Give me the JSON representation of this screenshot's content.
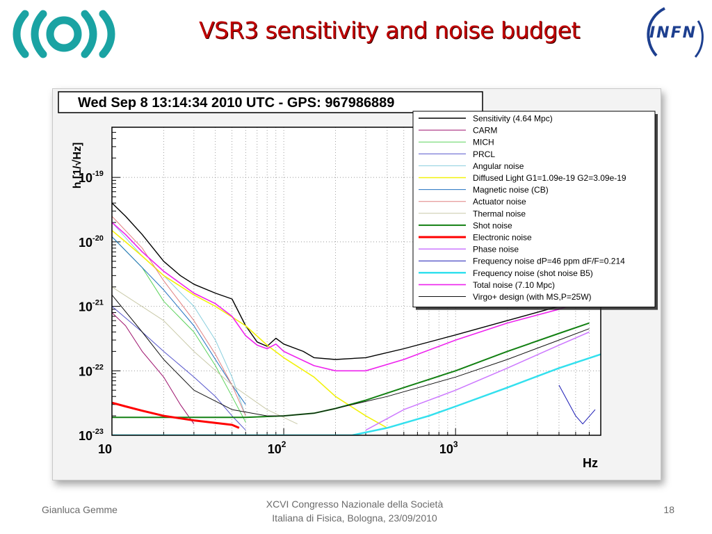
{
  "slide": {
    "title": "VSR3 sensitivity  and noise budget",
    "logo_left_icon": "virgo-wave-logo-icon",
    "logo_right_icon": "infn-logo-icon",
    "logo_right_text": "INFN"
  },
  "footer": {
    "author": "Gianluca Gemme",
    "event_line1": "XCVI Congresso Nazionale della Società",
    "event_line2": "Italiana di Fisica, Bologna, 23/09/2010",
    "page_number": "18"
  },
  "chart_data": {
    "type": "line",
    "title": "Wed Sep  8 13:14:34 2010 UTC - GPS: 967986889",
    "xlabel": "Hz",
    "ylabel": "h [1/√Hz]",
    "x_scale": "log",
    "y_scale": "log",
    "xlim": [
      10,
      7000
    ],
    "ylim": [
      1e-23,
      6e-19
    ],
    "x_ticks": [
      {
        "value": 10,
        "base": "10",
        "exp": ""
      },
      {
        "value": 100,
        "base": "10",
        "exp": "2"
      },
      {
        "value": 1000,
        "base": "10",
        "exp": "3"
      }
    ],
    "y_ticks": [
      {
        "value": 1e-19,
        "base": "10",
        "exp": "-19"
      },
      {
        "value": 1e-20,
        "base": "10",
        "exp": "-20"
      },
      {
        "value": 1e-21,
        "base": "10",
        "exp": "-21"
      },
      {
        "value": 1e-22,
        "base": "10",
        "exp": "-22"
      },
      {
        "value": 1e-23,
        "base": "10",
        "exp": "-23"
      }
    ],
    "grid": true,
    "legend_position": "top-right",
    "series": [
      {
        "name": "Sensitivity (4.64 Mpc)",
        "color": "#000000",
        "width": 1.4,
        "points": [
          [
            10,
            4e-20
          ],
          [
            12,
            2.5e-20
          ],
          [
            15,
            1.3e-20
          ],
          [
            20,
            5e-21
          ],
          [
            25,
            3e-21
          ],
          [
            30,
            2.2e-21
          ],
          [
            40,
            1.6e-21
          ],
          [
            50,
            1.3e-21
          ],
          [
            60,
            5e-22
          ],
          [
            70,
            2.8e-22
          ],
          [
            80,
            2.4e-22
          ],
          [
            90,
            3.2e-22
          ],
          [
            100,
            2.6e-22
          ],
          [
            130,
            2e-22
          ],
          [
            150,
            1.6e-22
          ],
          [
            200,
            1.5e-22
          ],
          [
            300,
            1.6e-22
          ],
          [
            500,
            2.2e-22
          ],
          [
            1000,
            3.6e-22
          ],
          [
            2000,
            6e-22
          ],
          [
            4000,
            1e-21
          ],
          [
            6000,
            1.3e-21
          ]
        ]
      },
      {
        "name": "CARM",
        "color": "#9c0f6b",
        "width": 1,
        "points": [
          [
            10,
            8e-22
          ],
          [
            12,
            5e-22
          ],
          [
            15,
            2e-22
          ],
          [
            20,
            8e-23
          ],
          [
            25,
            3e-23
          ],
          [
            30,
            1.5e-23
          ]
        ]
      },
      {
        "name": "MICH",
        "color": "#5bd35b",
        "width": 1,
        "points": [
          [
            10,
            1.2e-20
          ],
          [
            15,
            4e-21
          ],
          [
            20,
            1.2e-21
          ],
          [
            30,
            4e-22
          ],
          [
            40,
            1.2e-22
          ],
          [
            50,
            4e-23
          ],
          [
            60,
            1.6e-23
          ]
        ]
      },
      {
        "name": "PRCL",
        "color": "#5555cc",
        "width": 1,
        "points": [
          [
            10,
            1e-21
          ],
          [
            15,
            4e-22
          ],
          [
            20,
            2e-22
          ],
          [
            30,
            8e-23
          ],
          [
            40,
            4e-23
          ],
          [
            50,
            2e-23
          ],
          [
            60,
            1.2e-23
          ]
        ]
      },
      {
        "name": "Angular noise",
        "color": "#87cedd",
        "width": 1,
        "points": [
          [
            10,
            2e-20
          ],
          [
            15,
            6e-21
          ],
          [
            20,
            3e-21
          ],
          [
            30,
            1e-21
          ],
          [
            40,
            3e-22
          ],
          [
            50,
            8e-23
          ],
          [
            60,
            2e-23
          ]
        ]
      },
      {
        "name": "Diffused Light G1=1.09e-19 G2=3.09e-19",
        "color": "#f2f20a",
        "width": 1.6,
        "points": [
          [
            10,
            1.5e-20
          ],
          [
            12,
            1e-20
          ],
          [
            15,
            6e-21
          ],
          [
            20,
            3e-21
          ],
          [
            30,
            1.5e-21
          ],
          [
            40,
            1e-21
          ],
          [
            60,
            5e-22
          ],
          [
            80,
            2.5e-22
          ],
          [
            100,
            1.6e-22
          ],
          [
            150,
            8e-23
          ],
          [
            200,
            4e-23
          ],
          [
            300,
            2e-23
          ],
          [
            400,
            1.3e-23
          ]
        ]
      },
      {
        "name": "Magnetic noise (CB)",
        "color": "#1f6fbf",
        "width": 1,
        "points": [
          [
            10,
            1.2e-20
          ],
          [
            15,
            4e-21
          ],
          [
            20,
            1.8e-21
          ],
          [
            30,
            5e-22
          ],
          [
            40,
            1.5e-22
          ],
          [
            50,
            6e-23
          ],
          [
            60,
            3e-23
          ]
        ]
      },
      {
        "name": "Actuator noise",
        "color": "#e08080",
        "width": 1,
        "points": [
          [
            10,
            2.5e-20
          ],
          [
            15,
            8e-21
          ],
          [
            20,
            2.5e-21
          ],
          [
            30,
            6e-22
          ],
          [
            40,
            1.8e-22
          ],
          [
            50,
            6e-23
          ],
          [
            60,
            2e-23
          ]
        ]
      },
      {
        "name": "Thermal noise",
        "color": "#c9c9a8",
        "width": 1,
        "points": [
          [
            10,
            2e-21
          ],
          [
            20,
            6e-22
          ],
          [
            30,
            2e-22
          ],
          [
            50,
            6e-23
          ],
          [
            80,
            2.5e-23
          ],
          [
            120,
            1.5e-23
          ]
        ]
      },
      {
        "name": "Shot noise",
        "color": "#128012",
        "width": 2,
        "points": [
          [
            10,
            1.9e-23
          ],
          [
            30,
            1.9e-23
          ],
          [
            60,
            1.9e-23
          ],
          [
            100,
            2e-23
          ],
          [
            150,
            2.2e-23
          ],
          [
            200,
            2.6e-23
          ],
          [
            300,
            3.5e-23
          ],
          [
            500,
            5.5e-23
          ],
          [
            1000,
            1e-22
          ],
          [
            2000,
            2e-22
          ],
          [
            4000,
            3.8e-22
          ],
          [
            6000,
            5.5e-22
          ]
        ]
      },
      {
        "name": "Electronic noise",
        "color": "#ff0000",
        "width": 3,
        "points": [
          [
            10,
            3.2e-23
          ],
          [
            12,
            2.8e-23
          ],
          [
            15,
            2.4e-23
          ],
          [
            20,
            2e-23
          ],
          [
            30,
            1.7e-23
          ],
          [
            50,
            1.45e-23
          ],
          [
            55,
            1.3e-23
          ]
        ]
      },
      {
        "name": "Phase noise",
        "color": "#cc77ff",
        "width": 1.5,
        "points": [
          [
            300,
            1.2e-23
          ],
          [
            500,
            2.5e-23
          ],
          [
            1000,
            5e-23
          ],
          [
            2000,
            1.1e-22
          ],
          [
            4000,
            2.5e-22
          ],
          [
            6000,
            4e-22
          ]
        ]
      },
      {
        "name": "Frequency noise dP=46 ppm dF/F=0.214",
        "color": "#1a1ab5",
        "width": 1,
        "points": [
          [
            4000,
            6e-23
          ],
          [
            5000,
            2e-23
          ],
          [
            5500,
            1.5e-23
          ],
          [
            6500,
            2.5e-23
          ]
        ]
      },
      {
        "name": "Frequency noise (shot noise B5)",
        "color": "#33e0ee",
        "width": 2.5,
        "points": [
          [
            10,
            1e-23
          ],
          [
            100,
            1e-23
          ],
          [
            250,
            1e-23
          ],
          [
            400,
            1.3e-23
          ],
          [
            700,
            2e-23
          ],
          [
            1000,
            2.8e-23
          ],
          [
            2000,
            5.5e-23
          ],
          [
            4000,
            1.1e-22
          ],
          [
            7000,
            1.8e-22
          ]
        ]
      },
      {
        "name": "Total noise (7.10 Mpc)",
        "color": "#ee22ee",
        "width": 1.6,
        "points": [
          [
            10,
            2e-20
          ],
          [
            12,
            1.3e-20
          ],
          [
            15,
            7e-21
          ],
          [
            20,
            3.5e-21
          ],
          [
            30,
            1.6e-21
          ],
          [
            40,
            1.1e-21
          ],
          [
            50,
            7e-22
          ],
          [
            60,
            3.5e-22
          ],
          [
            70,
            2.5e-22
          ],
          [
            80,
            2.2e-22
          ],
          [
            90,
            2.6e-22
          ],
          [
            100,
            2e-22
          ],
          [
            150,
            1.2e-22
          ],
          [
            200,
            1e-22
          ],
          [
            300,
            1e-22
          ],
          [
            500,
            1.5e-22
          ],
          [
            1000,
            3e-22
          ],
          [
            2000,
            5.5e-22
          ],
          [
            4000,
            9e-22
          ],
          [
            6000,
            1.3e-21
          ]
        ]
      },
      {
        "name": "Virgo+ design (with MS,P=25W)",
        "color": "#111111",
        "width": 1,
        "points": [
          [
            10,
            1.5e-21
          ],
          [
            15,
            4e-22
          ],
          [
            20,
            1.5e-22
          ],
          [
            30,
            5e-23
          ],
          [
            50,
            2.5e-23
          ],
          [
            80,
            2e-23
          ],
          [
            100,
            2e-23
          ],
          [
            150,
            2.2e-23
          ],
          [
            200,
            2.6e-23
          ],
          [
            400,
            4e-23
          ],
          [
            1000,
            8e-23
          ],
          [
            2000,
            1.5e-22
          ],
          [
            4000,
            3e-22
          ],
          [
            6000,
            4.5e-22
          ]
        ]
      }
    ]
  }
}
